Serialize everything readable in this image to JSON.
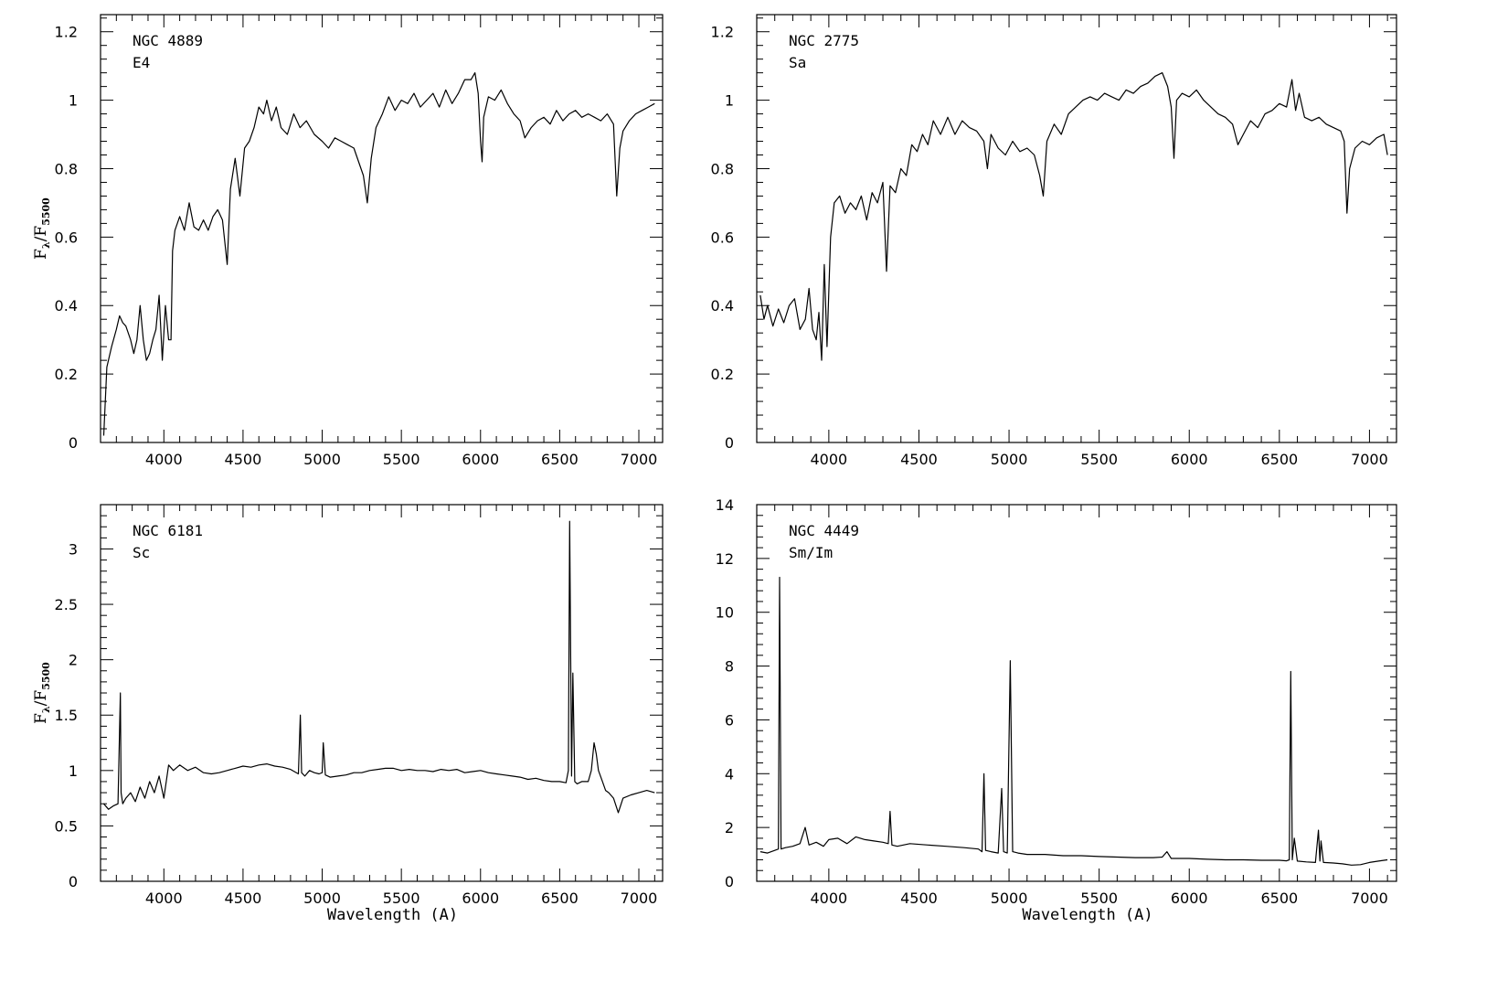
{
  "chart_data": [
    {
      "type": "line",
      "galaxy": "NGC 4889",
      "morph_type": "E4",
      "xlabel": "",
      "ylabel": "Fλ/F5500",
      "ylabel_main": "F",
      "ylabel_sub1": "λ",
      "ylabel_slash": "/F",
      "ylabel_sub2": "5500",
      "xlim": [
        3600,
        7150
      ],
      "ylim": [
        0,
        1.25
      ],
      "x_ticks": [
        4000,
        4500,
        5000,
        5500,
        6000,
        6500,
        7000
      ],
      "y_ticks": [
        0,
        0.2,
        0.4,
        0.6,
        0.8,
        1,
        1.2
      ],
      "x_tick_labels": [
        "4000",
        "4500",
        "5000",
        "5500",
        "6000",
        "6500",
        "7000"
      ],
      "y_tick_labels": [
        "0",
        "0.2",
        "0.4",
        "0.6",
        "0.8",
        "1",
        "1.2"
      ],
      "series": [
        {
          "x": [
            3620,
            3640,
            3670,
            3700,
            3720,
            3740,
            3760,
            3790,
            3810,
            3830,
            3850,
            3870,
            3890,
            3910,
            3930,
            3950,
            3970,
            3990,
            4010,
            4030,
            4045,
            4055,
            4070,
            4100,
            4130,
            4160,
            4190,
            4220,
            4250,
            4280,
            4310,
            4340,
            4370,
            4400,
            4420,
            4450,
            4480,
            4510,
            4540,
            4570,
            4600,
            4630,
            4650,
            4680,
            4710,
            4740,
            4780,
            4820,
            4860,
            4900,
            4950,
            5000,
            5040,
            5080,
            5120,
            5160,
            5200,
            5230,
            5260,
            5285,
            5310,
            5340,
            5380,
            5420,
            5460,
            5500,
            5540,
            5580,
            5620,
            5660,
            5700,
            5740,
            5780,
            5820,
            5860,
            5900,
            5940,
            5965,
            5985,
            6000,
            6010,
            6020,
            6050,
            6090,
            6130,
            6170,
            6210,
            6250,
            6280,
            6320,
            6360,
            6400,
            6440,
            6480,
            6520,
            6560,
            6600,
            6640,
            6680,
            6720,
            6760,
            6800,
            6840,
            6860,
            6880,
            6900,
            6940,
            6980,
            7020,
            7060,
            7100
          ],
          "y": [
            0.02,
            0.22,
            0.28,
            0.33,
            0.37,
            0.35,
            0.34,
            0.3,
            0.26,
            0.3,
            0.4,
            0.3,
            0.24,
            0.26,
            0.3,
            0.33,
            0.43,
            0.24,
            0.4,
            0.3,
            0.3,
            0.56,
            0.62,
            0.66,
            0.62,
            0.7,
            0.63,
            0.62,
            0.65,
            0.62,
            0.66,
            0.68,
            0.65,
            0.52,
            0.74,
            0.83,
            0.72,
            0.86,
            0.88,
            0.92,
            0.98,
            0.96,
            1.0,
            0.94,
            0.98,
            0.92,
            0.9,
            0.96,
            0.92,
            0.94,
            0.9,
            0.88,
            0.86,
            0.89,
            0.88,
            0.87,
            0.86,
            0.82,
            0.78,
            0.7,
            0.83,
            0.92,
            0.96,
            1.01,
            0.97,
            1.0,
            0.99,
            1.02,
            0.98,
            1.0,
            1.02,
            0.98,
            1.03,
            0.99,
            1.02,
            1.06,
            1.06,
            1.08,
            1.02,
            0.88,
            0.82,
            0.95,
            1.01,
            1.0,
            1.03,
            0.99,
            0.96,
            0.94,
            0.89,
            0.92,
            0.94,
            0.95,
            0.93,
            0.97,
            0.94,
            0.96,
            0.97,
            0.95,
            0.96,
            0.95,
            0.94,
            0.96,
            0.93,
            0.72,
            0.86,
            0.91,
            0.94,
            0.96,
            0.97,
            0.98,
            0.99
          ]
        }
      ]
    },
    {
      "type": "line",
      "galaxy": "NGC 2775",
      "morph_type": "Sa",
      "xlabel": "",
      "ylabel": "",
      "xlim": [
        3600,
        7150
      ],
      "ylim": [
        0,
        1.25
      ],
      "x_ticks": [
        4000,
        4500,
        5000,
        5500,
        6000,
        6500,
        7000
      ],
      "y_ticks": [
        0,
        0.2,
        0.4,
        0.6,
        0.8,
        1,
        1.2
      ],
      "x_tick_labels": [
        "4000",
        "4500",
        "5000",
        "5500",
        "6000",
        "6500",
        "7000"
      ],
      "y_tick_labels": [
        "0",
        "0.2",
        "0.4",
        "0.6",
        "0.8",
        "1",
        "1.2"
      ],
      "series": [
        {
          "x": [
            3620,
            3640,
            3660,
            3690,
            3720,
            3750,
            3780,
            3810,
            3840,
            3870,
            3890,
            3910,
            3930,
            3945,
            3960,
            3975,
            3990,
            4010,
            4030,
            4060,
            4090,
            4120,
            4150,
            4180,
            4210,
            4240,
            4270,
            4300,
            4320,
            4340,
            4370,
            4400,
            4430,
            4460,
            4490,
            4520,
            4550,
            4580,
            4620,
            4660,
            4700,
            4740,
            4780,
            4820,
            4860,
            4880,
            4900,
            4940,
            4980,
            5020,
            5060,
            5100,
            5140,
            5170,
            5190,
            5210,
            5250,
            5290,
            5330,
            5370,
            5410,
            5450,
            5490,
            5530,
            5570,
            5610,
            5650,
            5690,
            5730,
            5770,
            5810,
            5850,
            5880,
            5900,
            5915,
            5930,
            5960,
            6000,
            6040,
            6080,
            6120,
            6160,
            6200,
            6240,
            6270,
            6300,
            6340,
            6380,
            6420,
            6460,
            6500,
            6540,
            6570,
            6590,
            6610,
            6640,
            6680,
            6720,
            6760,
            6800,
            6840,
            6860,
            6875,
            6890,
            6920,
            6960,
            7000,
            7040,
            7080,
            7100
          ],
          "y": [
            0.43,
            0.36,
            0.4,
            0.34,
            0.39,
            0.35,
            0.4,
            0.42,
            0.33,
            0.36,
            0.45,
            0.33,
            0.3,
            0.38,
            0.24,
            0.52,
            0.28,
            0.6,
            0.7,
            0.72,
            0.67,
            0.7,
            0.68,
            0.72,
            0.65,
            0.73,
            0.7,
            0.76,
            0.5,
            0.75,
            0.73,
            0.8,
            0.78,
            0.87,
            0.85,
            0.9,
            0.87,
            0.94,
            0.9,
            0.95,
            0.9,
            0.94,
            0.92,
            0.91,
            0.88,
            0.8,
            0.9,
            0.86,
            0.84,
            0.88,
            0.85,
            0.86,
            0.84,
            0.78,
            0.72,
            0.88,
            0.93,
            0.9,
            0.96,
            0.98,
            1.0,
            1.01,
            1.0,
            1.02,
            1.01,
            1.0,
            1.03,
            1.02,
            1.04,
            1.05,
            1.07,
            1.08,
            1.04,
            0.98,
            0.83,
            1.0,
            1.02,
            1.01,
            1.03,
            1.0,
            0.98,
            0.96,
            0.95,
            0.93,
            0.87,
            0.9,
            0.94,
            0.92,
            0.96,
            0.97,
            0.99,
            0.98,
            1.06,
            0.97,
            1.02,
            0.95,
            0.94,
            0.95,
            0.93,
            0.92,
            0.91,
            0.88,
            0.67,
            0.8,
            0.86,
            0.88,
            0.87,
            0.89,
            0.9,
            0.84
          ]
        }
      ]
    },
    {
      "type": "line",
      "galaxy": "NGC 6181",
      "morph_type": "Sc",
      "xlabel": "Wavelength (A)",
      "ylabel": "Fλ/F5500",
      "ylabel_main": "F",
      "ylabel_sub1": "λ",
      "ylabel_slash": "/F",
      "ylabel_sub2": "5500",
      "xlim": [
        3600,
        7150
      ],
      "ylim": [
        0,
        3.4
      ],
      "x_ticks": [
        4000,
        4500,
        5000,
        5500,
        6000,
        6500,
        7000
      ],
      "y_ticks": [
        0,
        0.5,
        1,
        1.5,
        2,
        2.5,
        3
      ],
      "x_tick_labels": [
        "4000",
        "4500",
        "5000",
        "5500",
        "6000",
        "6500",
        "7000"
      ],
      "y_tick_labels": [
        "0",
        "0.5",
        "1",
        "1.5",
        "2",
        "2.5",
        "3"
      ],
      "series": [
        {
          "x": [
            3620,
            3650,
            3680,
            3710,
            3725,
            3730,
            3740,
            3760,
            3790,
            3820,
            3850,
            3880,
            3910,
            3940,
            3970,
            4000,
            4030,
            4060,
            4100,
            4150,
            4200,
            4250,
            4300,
            4350,
            4400,
            4450,
            4500,
            4550,
            4600,
            4650,
            4700,
            4750,
            4800,
            4850,
            4862,
            4870,
            4890,
            4920,
            4950,
            4980,
            5000,
            5007,
            5020,
            5050,
            5100,
            5150,
            5200,
            5250,
            5300,
            5350,
            5400,
            5450,
            5500,
            5550,
            5600,
            5650,
            5700,
            5750,
            5800,
            5850,
            5900,
            5950,
            6000,
            6050,
            6100,
            6150,
            6200,
            6250,
            6300,
            6350,
            6400,
            6450,
            6500,
            6540,
            6555,
            6563,
            6575,
            6583,
            6595,
            6610,
            6640,
            6680,
            6700,
            6717,
            6731,
            6745,
            6770,
            6790,
            6810,
            6840,
            6870,
            6900,
            6950,
            7000,
            7050,
            7100
          ],
          "y": [
            0.7,
            0.65,
            0.68,
            0.7,
            1.7,
            0.8,
            0.7,
            0.75,
            0.8,
            0.72,
            0.85,
            0.75,
            0.9,
            0.8,
            0.95,
            0.75,
            1.05,
            1.0,
            1.05,
            1.0,
            1.03,
            0.98,
            0.97,
            0.98,
            1.0,
            1.02,
            1.04,
            1.03,
            1.05,
            1.06,
            1.04,
            1.03,
            1.01,
            0.97,
            1.5,
            0.98,
            0.95,
            1.0,
            0.98,
            0.97,
            0.98,
            1.25,
            0.96,
            0.94,
            0.95,
            0.96,
            0.98,
            0.98,
            1.0,
            1.01,
            1.02,
            1.02,
            1.0,
            1.01,
            1.0,
            1.0,
            0.99,
            1.01,
            1.0,
            1.01,
            0.98,
            0.99,
            1.0,
            0.98,
            0.97,
            0.96,
            0.95,
            0.94,
            0.92,
            0.93,
            0.91,
            0.9,
            0.9,
            0.89,
            1.0,
            3.25,
            0.95,
            1.88,
            0.9,
            0.88,
            0.9,
            0.9,
            1.0,
            1.25,
            1.15,
            1.0,
            0.9,
            0.82,
            0.8,
            0.75,
            0.62,
            0.75,
            0.78,
            0.8,
            0.82,
            0.8
          ]
        }
      ]
    },
    {
      "type": "line",
      "galaxy": "NGC 4449",
      "morph_type": "Sm/Im",
      "xlabel": "Wavelength (A)",
      "ylabel": "",
      "xlim": [
        3600,
        7150
      ],
      "ylim": [
        0,
        14
      ],
      "x_ticks": [
        4000,
        4500,
        5000,
        5500,
        6000,
        6500,
        7000
      ],
      "y_ticks": [
        0,
        2,
        4,
        6,
        8,
        10,
        12,
        14
      ],
      "x_tick_labels": [
        "4000",
        "4500",
        "5000",
        "5500",
        "6000",
        "6500",
        "7000"
      ],
      "y_tick_labels": [
        "0",
        "2",
        "4",
        "6",
        "8",
        "10",
        "12",
        "14"
      ],
      "series": [
        {
          "x": [
            3620,
            3660,
            3700,
            3720,
            3727,
            3735,
            3760,
            3800,
            3840,
            3869,
            3890,
            3930,
            3970,
            4000,
            4050,
            4101,
            4150,
            4200,
            4250,
            4300,
            4330,
            4340,
            4350,
            4380,
            4450,
            4550,
            4650,
            4750,
            4830,
            4850,
            4861,
            4870,
            4900,
            4940,
            4959,
            4970,
            4990,
            5007,
            5020,
            5050,
            5100,
            5200,
            5300,
            5400,
            5500,
            5600,
            5700,
            5800,
            5850,
            5876,
            5900,
            6000,
            6100,
            6200,
            6300,
            6400,
            6500,
            6540,
            6555,
            6563,
            6572,
            6583,
            6600,
            6650,
            6700,
            6717,
            6725,
            6731,
            6745,
            6800,
            6850,
            6900,
            6950,
            7000,
            7050,
            7100
          ],
          "y": [
            1.1,
            1.05,
            1.15,
            1.2,
            11.3,
            1.2,
            1.25,
            1.3,
            1.4,
            2.0,
            1.35,
            1.45,
            1.3,
            1.55,
            1.6,
            1.4,
            1.65,
            1.55,
            1.5,
            1.45,
            1.4,
            2.6,
            1.35,
            1.3,
            1.4,
            1.35,
            1.3,
            1.25,
            1.2,
            1.1,
            4.0,
            1.15,
            1.1,
            1.05,
            3.45,
            1.1,
            1.05,
            8.2,
            1.1,
            1.05,
            1.0,
            1.0,
            0.95,
            0.95,
            0.92,
            0.9,
            0.88,
            0.88,
            0.9,
            1.1,
            0.85,
            0.85,
            0.82,
            0.8,
            0.8,
            0.78,
            0.78,
            0.76,
            0.8,
            7.8,
            0.8,
            1.6,
            0.75,
            0.72,
            0.7,
            1.9,
            0.75,
            1.5,
            0.7,
            0.68,
            0.65,
            0.6,
            0.62,
            0.7,
            0.75,
            0.8
          ]
        }
      ]
    }
  ]
}
